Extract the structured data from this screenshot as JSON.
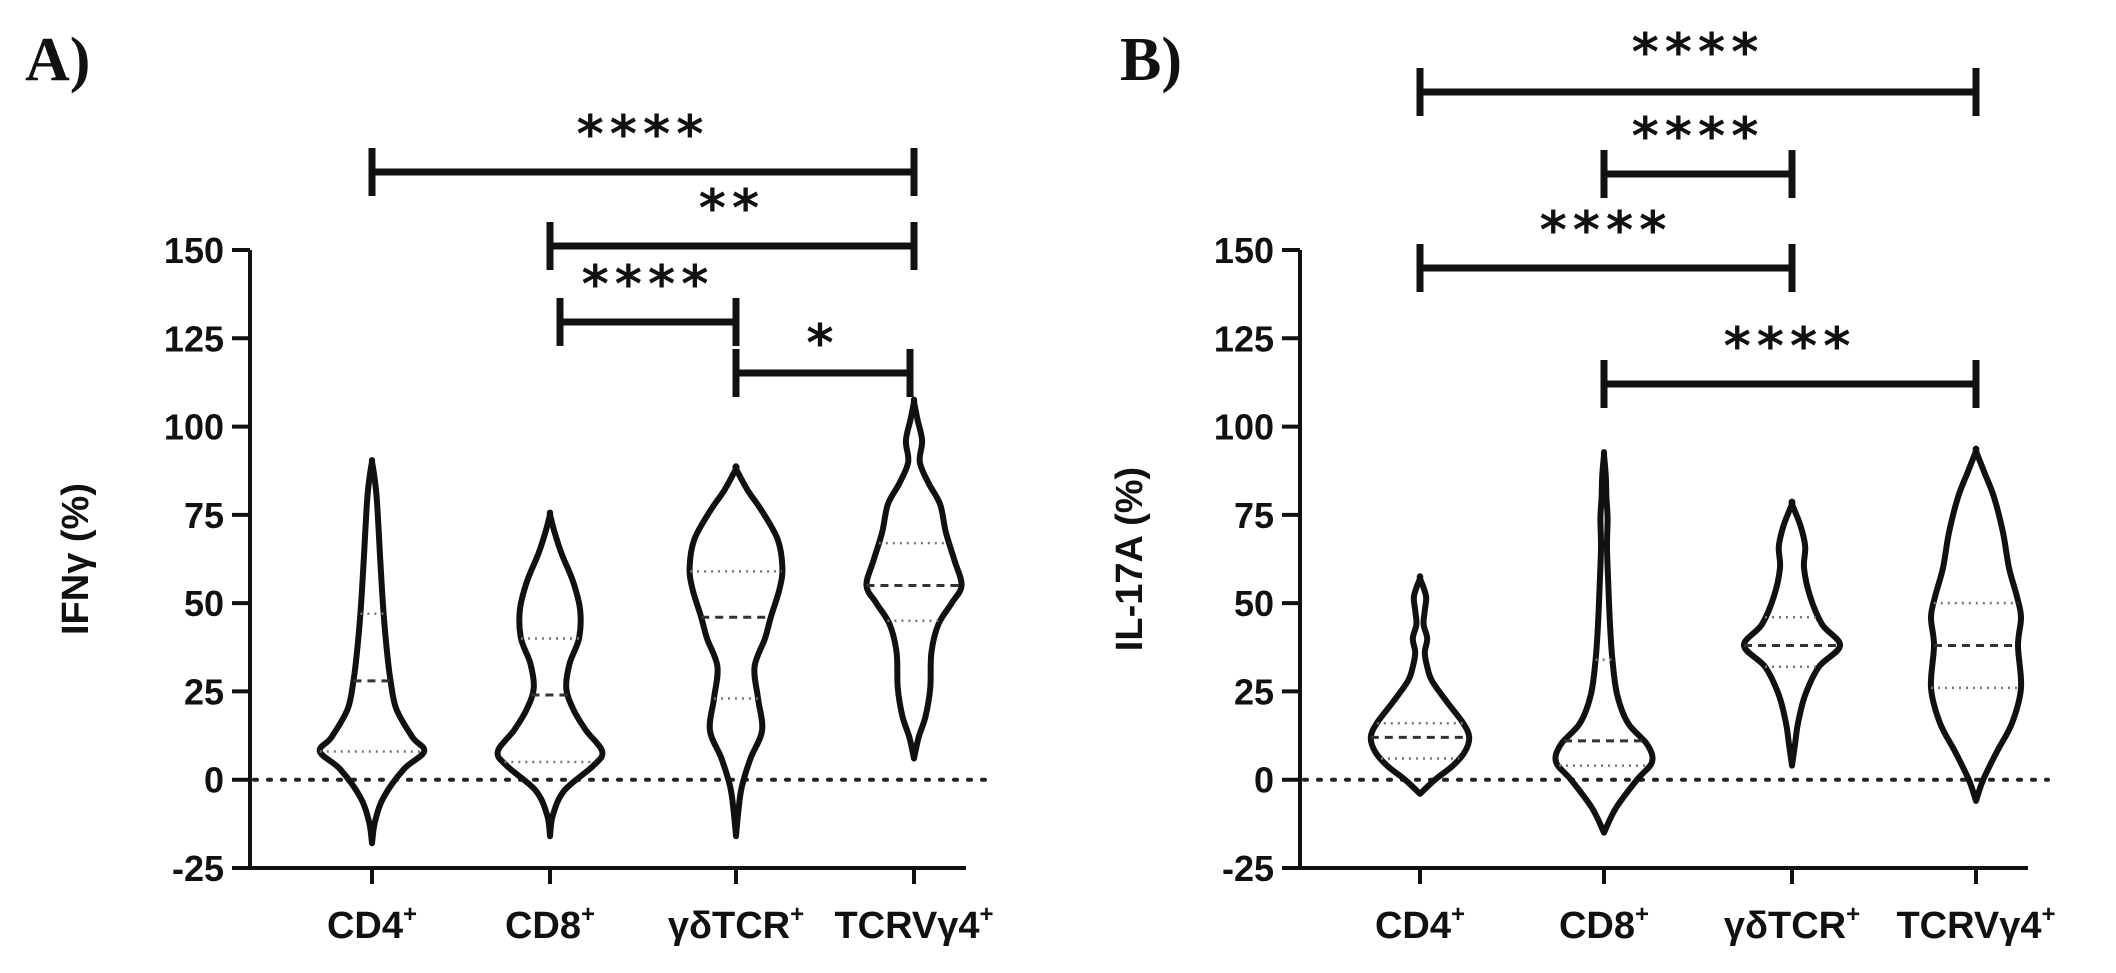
{
  "chart_data": [
    {
      "panel": "A)",
      "type": "violin",
      "ylabel": "IFNγ (%)",
      "ylim": [
        -25,
        150
      ],
      "yticks": [
        150,
        125,
        100,
        75,
        50,
        25,
        0,
        -25
      ],
      "categories": [
        {
          "base": "CD4",
          "sup": "+"
        },
        {
          "base": "CD8",
          "sup": "+"
        },
        {
          "base": "γδTCR",
          "sup": "+"
        },
        {
          "base": "TCRVγ4",
          "sup": "+"
        }
      ],
      "zero_line": true,
      "violins": [
        {
          "median": 28,
          "q1": 8,
          "q3": 47,
          "min": -18,
          "max": 90,
          "profile": [
            [
              -18,
              0.0
            ],
            [
              -12,
              0.05
            ],
            [
              -5,
              0.2
            ],
            [
              3,
              0.55
            ],
            [
              8,
              0.9
            ],
            [
              12,
              0.7
            ],
            [
              20,
              0.42
            ],
            [
              28,
              0.32
            ],
            [
              36,
              0.26
            ],
            [
              47,
              0.2
            ],
            [
              60,
              0.15
            ],
            [
              72,
              0.11
            ],
            [
              80,
              0.08
            ],
            [
              86,
              0.04
            ],
            [
              90,
              0.0
            ]
          ]
        },
        {
          "median": 24,
          "q1": 5,
          "q3": 40,
          "min": -16,
          "max": 75,
          "profile": [
            [
              -16,
              0.0
            ],
            [
              -10,
              0.05
            ],
            [
              -3,
              0.25
            ],
            [
              4,
              0.75
            ],
            [
              8,
              0.9
            ],
            [
              14,
              0.62
            ],
            [
              20,
              0.4
            ],
            [
              26,
              0.28
            ],
            [
              33,
              0.34
            ],
            [
              40,
              0.5
            ],
            [
              48,
              0.52
            ],
            [
              56,
              0.4
            ],
            [
              64,
              0.2
            ],
            [
              70,
              0.08
            ],
            [
              75,
              0.0
            ]
          ]
        },
        {
          "median": 46,
          "q1": 23,
          "q3": 59,
          "min": -16,
          "max": 88,
          "profile": [
            [
              -16,
              0.0
            ],
            [
              -9,
              0.04
            ],
            [
              -2,
              0.1
            ],
            [
              6,
              0.25
            ],
            [
              14,
              0.45
            ],
            [
              23,
              0.38
            ],
            [
              32,
              0.32
            ],
            [
              40,
              0.5
            ],
            [
              46,
              0.6
            ],
            [
              54,
              0.75
            ],
            [
              60,
              0.8
            ],
            [
              68,
              0.72
            ],
            [
              76,
              0.45
            ],
            [
              82,
              0.2
            ],
            [
              88,
              0.0
            ]
          ]
        },
        {
          "median": 55,
          "q1": 45,
          "q3": 67,
          "min": 6,
          "max": 107,
          "profile": [
            [
              6,
              0.0
            ],
            [
              12,
              0.08
            ],
            [
              18,
              0.2
            ],
            [
              26,
              0.28
            ],
            [
              36,
              0.3
            ],
            [
              44,
              0.42
            ],
            [
              50,
              0.65
            ],
            [
              55,
              0.82
            ],
            [
              62,
              0.7
            ],
            [
              70,
              0.55
            ],
            [
              78,
              0.45
            ],
            [
              84,
              0.25
            ],
            [
              90,
              0.1
            ],
            [
              96,
              0.14
            ],
            [
              102,
              0.06
            ],
            [
              107,
              0.0
            ]
          ]
        }
      ],
      "significance": [
        {
          "from": 0,
          "to": 3,
          "label": "****"
        },
        {
          "from": 1,
          "to": 3,
          "label": "**"
        },
        {
          "from": 1,
          "to": 2,
          "label": "****"
        },
        {
          "from": 2,
          "to": 3,
          "label": "*"
        }
      ]
    },
    {
      "panel": "B)",
      "type": "violin",
      "ylabel": "IL-17A (%)",
      "ylim": [
        -25,
        150
      ],
      "yticks": [
        150,
        125,
        100,
        75,
        50,
        25,
        0,
        -25
      ],
      "categories": [
        {
          "base": "CD4",
          "sup": "+"
        },
        {
          "base": "CD8",
          "sup": "+"
        },
        {
          "base": "γδTCR",
          "sup": "+"
        },
        {
          "base": "TCRVγ4",
          "sup": "+"
        }
      ],
      "zero_line": true,
      "violins": [
        {
          "median": 12,
          "q1": 6,
          "q3": 16,
          "min": -4,
          "max": 57,
          "profile": [
            [
              -4,
              0.0
            ],
            [
              0,
              0.25
            ],
            [
              4,
              0.55
            ],
            [
              8,
              0.75
            ],
            [
              12,
              0.82
            ],
            [
              16,
              0.72
            ],
            [
              22,
              0.45
            ],
            [
              28,
              0.2
            ],
            [
              32,
              0.12
            ],
            [
              36,
              0.08
            ],
            [
              40,
              0.12
            ],
            [
              44,
              0.06
            ],
            [
              48,
              0.08
            ],
            [
              52,
              0.1
            ],
            [
              57,
              0.0
            ]
          ]
        },
        {
          "median": 11,
          "q1": 4,
          "q3": 34,
          "min": -15,
          "max": 92,
          "profile": [
            [
              -15,
              0.0
            ],
            [
              -8,
              0.2
            ],
            [
              0,
              0.55
            ],
            [
              5,
              0.8
            ],
            [
              10,
              0.72
            ],
            [
              16,
              0.4
            ],
            [
              24,
              0.22
            ],
            [
              34,
              0.14
            ],
            [
              44,
              0.1
            ],
            [
              56,
              0.07
            ],
            [
              66,
              0.05
            ],
            [
              74,
              0.06
            ],
            [
              80,
              0.04
            ],
            [
              86,
              0.03
            ],
            [
              92,
              0.0
            ]
          ]
        },
        {
          "median": 38,
          "q1": 32,
          "q3": 46,
          "min": 4,
          "max": 78,
          "profile": [
            [
              4,
              0.0
            ],
            [
              10,
              0.05
            ],
            [
              16,
              0.1
            ],
            [
              24,
              0.22
            ],
            [
              32,
              0.45
            ],
            [
              38,
              0.8
            ],
            [
              44,
              0.5
            ],
            [
              52,
              0.3
            ],
            [
              60,
              0.2
            ],
            [
              66,
              0.22
            ],
            [
              72,
              0.14
            ],
            [
              78,
              0.0
            ]
          ]
        },
        {
          "median": 38,
          "q1": 26,
          "q3": 50,
          "min": -6,
          "max": 93,
          "profile": [
            [
              -6,
              0.0
            ],
            [
              0,
              0.12
            ],
            [
              8,
              0.35
            ],
            [
              16,
              0.6
            ],
            [
              26,
              0.75
            ],
            [
              38,
              0.7
            ],
            [
              46,
              0.75
            ],
            [
              52,
              0.68
            ],
            [
              60,
              0.55
            ],
            [
              70,
              0.45
            ],
            [
              80,
              0.3
            ],
            [
              87,
              0.14
            ],
            [
              93,
              0.0
            ]
          ]
        }
      ],
      "significance": [
        {
          "from": 0,
          "to": 3,
          "label": "****"
        },
        {
          "from": 1,
          "to": 2,
          "label": "****"
        },
        {
          "from": 0,
          "to": 2,
          "label": "****"
        },
        {
          "from": 1,
          "to": 3,
          "label": "****"
        }
      ]
    }
  ]
}
